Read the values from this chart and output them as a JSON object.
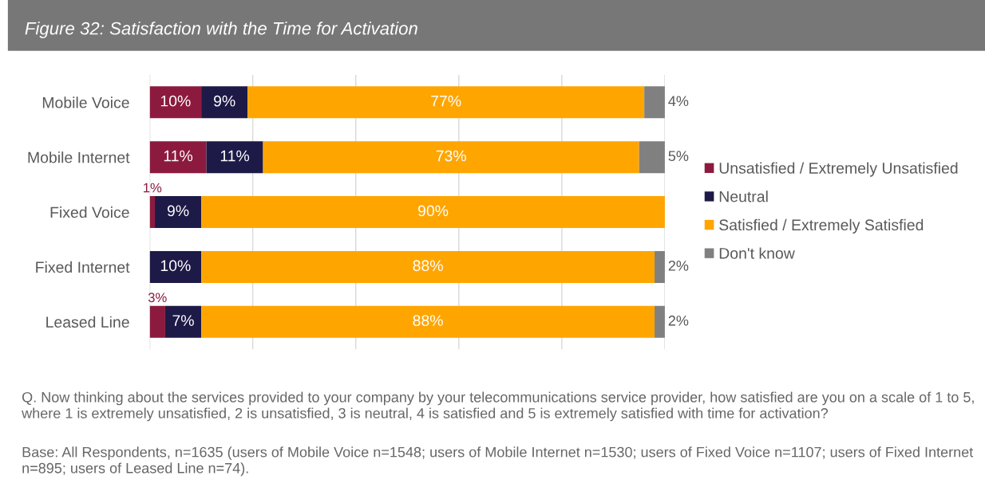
{
  "chart_data": {
    "type": "bar",
    "orientation": "horizontal",
    "stacked": true,
    "title": "Figure 32: Satisfaction with the Time for Activation",
    "categories": [
      "Mobile Voice",
      "Mobile Internet",
      "Fixed Voice",
      "Fixed Internet",
      "Leased Line"
    ],
    "series": [
      {
        "name": "Unsatisfied / Extremely Unsatisfied",
        "color": "#8c1a3f",
        "values": [
          10,
          11,
          1,
          0,
          3
        ],
        "value_labels": [
          "10%",
          "11%",
          "1%",
          null,
          "3%"
        ]
      },
      {
        "name": "Neutral",
        "color": "#1e1a47",
        "values": [
          9,
          11,
          9,
          10,
          7
        ],
        "value_labels": [
          "9%",
          "11%",
          "9%",
          "10%",
          "7%"
        ]
      },
      {
        "name": "Satisfied / Extremely Satisfied",
        "color": "#ffa500",
        "values": [
          77,
          73,
          90,
          88,
          88
        ],
        "value_labels": [
          "77%",
          "73%",
          "90%",
          "88%",
          "88%"
        ]
      },
      {
        "name": "Don't know",
        "color": "#808080",
        "values": [
          4,
          5,
          0,
          2,
          2
        ],
        "value_labels": [
          "4%",
          "5%",
          null,
          "2%",
          "2%"
        ]
      }
    ],
    "xlim": [
      0,
      100
    ],
    "xticks": [
      {
        "value": 0,
        "label": null
      },
      {
        "value": 20,
        "label": null
      },
      {
        "value": 40,
        "label": null
      },
      {
        "value": 60,
        "label": null
      },
      {
        "value": 80,
        "label": null
      },
      {
        "value": 100,
        "label": null
      }
    ],
    "tick_labels": "y",
    "grid": "x",
    "legend": "right",
    "annotations": [
      "Q. Now thinking about the services provided to your company by your telecommunications service provider, how satisfied are you on a scale of 1 to 5, where 1 is extremely unsatisfied, 2 is unsatisfied, 3 is neutral, 4 is satisfied and 5 is extremely satisfied with time for activation?",
      "Base: All Respondents, n=1635 (users of Mobile Voice n=1548; users of Mobile Internet n=1530; users of Fixed Voice n=1107; users of Fixed Internet n=895; users of Leased Line n=74)."
    ]
  }
}
